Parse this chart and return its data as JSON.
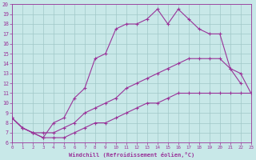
{
  "xlabel": "Windchill (Refroidissement éolien,°C)",
  "background_color": "#c8e8e8",
  "grid_color": "#a0c8c8",
  "line_color": "#993399",
  "xlim": [
    0,
    23
  ],
  "ylim": [
    6,
    20
  ],
  "xticks": [
    0,
    1,
    2,
    3,
    4,
    5,
    6,
    7,
    8,
    9,
    10,
    11,
    12,
    13,
    14,
    15,
    16,
    17,
    18,
    19,
    20,
    21,
    22,
    23
  ],
  "yticks": [
    6,
    7,
    8,
    9,
    10,
    11,
    12,
    13,
    14,
    15,
    16,
    17,
    18,
    19,
    20
  ],
  "line1_x": [
    0,
    1,
    2,
    3,
    4,
    5,
    6,
    7,
    8,
    9,
    10,
    11,
    12,
    13,
    14,
    15,
    16,
    17,
    18,
    19,
    20,
    21,
    22,
    23
  ],
  "line1_y": [
    8.5,
    7.5,
    7.0,
    6.5,
    6.5,
    6.5,
    7.0,
    7.5,
    8.0,
    8.0,
    8.5,
    9.0,
    9.5,
    10.0,
    10.0,
    10.5,
    11.0,
    11.0,
    11.0,
    11.0,
    11.0,
    11.0,
    11.0,
    11.0
  ],
  "line2_x": [
    0,
    1,
    2,
    3,
    4,
    5,
    6,
    7,
    8,
    9,
    10,
    11,
    12,
    13,
    14,
    15,
    16,
    17,
    18,
    19,
    20,
    21,
    22,
    23
  ],
  "line2_y": [
    8.5,
    7.5,
    7.0,
    7.0,
    7.0,
    7.5,
    8.0,
    9.0,
    9.5,
    10.0,
    10.5,
    11.5,
    12.0,
    12.5,
    13.0,
    13.5,
    14.0,
    14.5,
    14.5,
    14.5,
    14.5,
    13.5,
    13.0,
    11.0
  ],
  "line3_x": [
    0,
    1,
    2,
    3,
    4,
    5,
    6,
    7,
    8,
    9,
    10,
    11,
    12,
    13,
    14,
    15,
    16,
    17,
    18,
    19,
    20,
    21,
    22
  ],
  "line3_y": [
    8.5,
    7.5,
    7.0,
    6.5,
    8.0,
    8.5,
    10.5,
    11.5,
    14.5,
    15.0,
    17.5,
    18.0,
    18.0,
    18.5,
    19.5,
    18.0,
    19.5,
    18.5,
    17.5,
    17.0,
    17.0,
    13.5,
    12.0
  ]
}
